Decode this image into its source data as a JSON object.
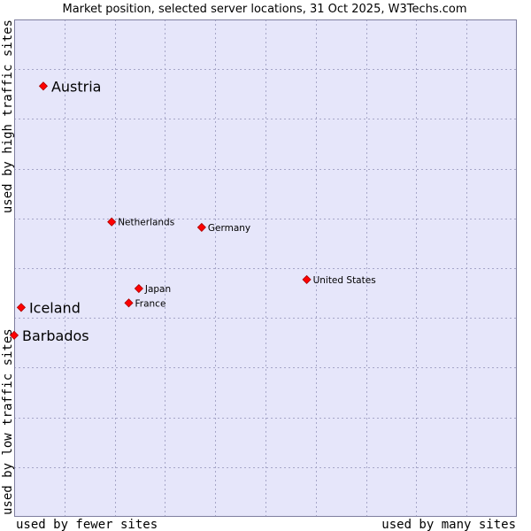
{
  "chart_data": {
    "type": "scatter",
    "title": "Market position, selected server locations, 31 Oct 2025, W3Techs.com",
    "xlabel_left": "used by fewer sites",
    "xlabel_right": "used by many sites",
    "ylabel_top": "used by high traffic sites",
    "ylabel_bottom": "used by low traffic sites",
    "xlim": [
      0,
      100
    ],
    "ylim": [
      0,
      100
    ],
    "grid": true,
    "colors": {
      "plot_bg": "#e6e6fa",
      "grid": "#a6a6c8",
      "border": "#7f7f9f",
      "marker": "#ff0000",
      "marker_edge": "#aa0000"
    },
    "points": [
      {
        "label": "Austria",
        "x": 5.8,
        "y": 86.6,
        "label_size": "large"
      },
      {
        "label": "Netherlands",
        "x": 19.4,
        "y": 59.3,
        "label_size": "small"
      },
      {
        "label": "Germany",
        "x": 37.3,
        "y": 58.2,
        "label_size": "small"
      },
      {
        "label": "United States",
        "x": 58.2,
        "y": 47.7,
        "label_size": "small"
      },
      {
        "label": "Japan",
        "x": 24.8,
        "y": 45.9,
        "label_size": "small"
      },
      {
        "label": "France",
        "x": 22.8,
        "y": 43.0,
        "label_size": "small"
      },
      {
        "label": "Iceland",
        "x": 1.4,
        "y": 42.1,
        "label_size": "large"
      },
      {
        "label": "Barbados",
        "x": 0.0,
        "y": 36.5,
        "label_size": "large"
      }
    ]
  }
}
